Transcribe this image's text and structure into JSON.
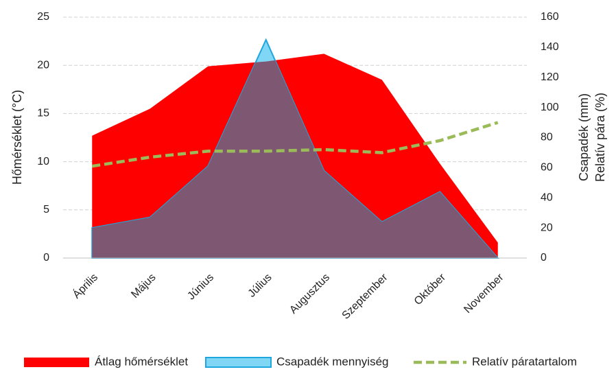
{
  "chart_data": {
    "type": "area",
    "categories": [
      "Április",
      "Május",
      "Június",
      "Július",
      "Augusztus",
      "Szeptember",
      "Október",
      "November"
    ],
    "series": [
      {
        "name": "Átlag hőmérséklet",
        "type": "area",
        "color": "#ff0000",
        "values": [
          12.7,
          15.5,
          19.9,
          20.4,
          21.2,
          18.5,
          9.8,
          1.6
        ]
      },
      {
        "name": "Csapadék mennyiség",
        "type": "area",
        "axis": "y2",
        "color": "#80d6f5",
        "values": [
          20,
          27,
          61,
          145,
          58,
          24,
          44,
          0
        ]
      },
      {
        "name": "Relatív páratartalom",
        "type": "line",
        "axis": "y2",
        "color": "#9bbb59",
        "values": [
          61,
          67,
          71,
          71,
          72,
          70,
          78,
          90
        ]
      }
    ],
    "ylabel": "Hőmérséklet (°C)",
    "y2label": [
      "Csapadék (mm)",
      "Relatív pára (%)"
    ],
    "ylim": [
      0,
      25
    ],
    "yticks": [
      0,
      5,
      10,
      15,
      20,
      25
    ],
    "y2lim": [
      0,
      160
    ],
    "y2ticks": [
      0,
      20,
      40,
      60,
      80,
      100,
      120,
      140,
      160
    ],
    "grid": true,
    "legend": "bottom"
  }
}
